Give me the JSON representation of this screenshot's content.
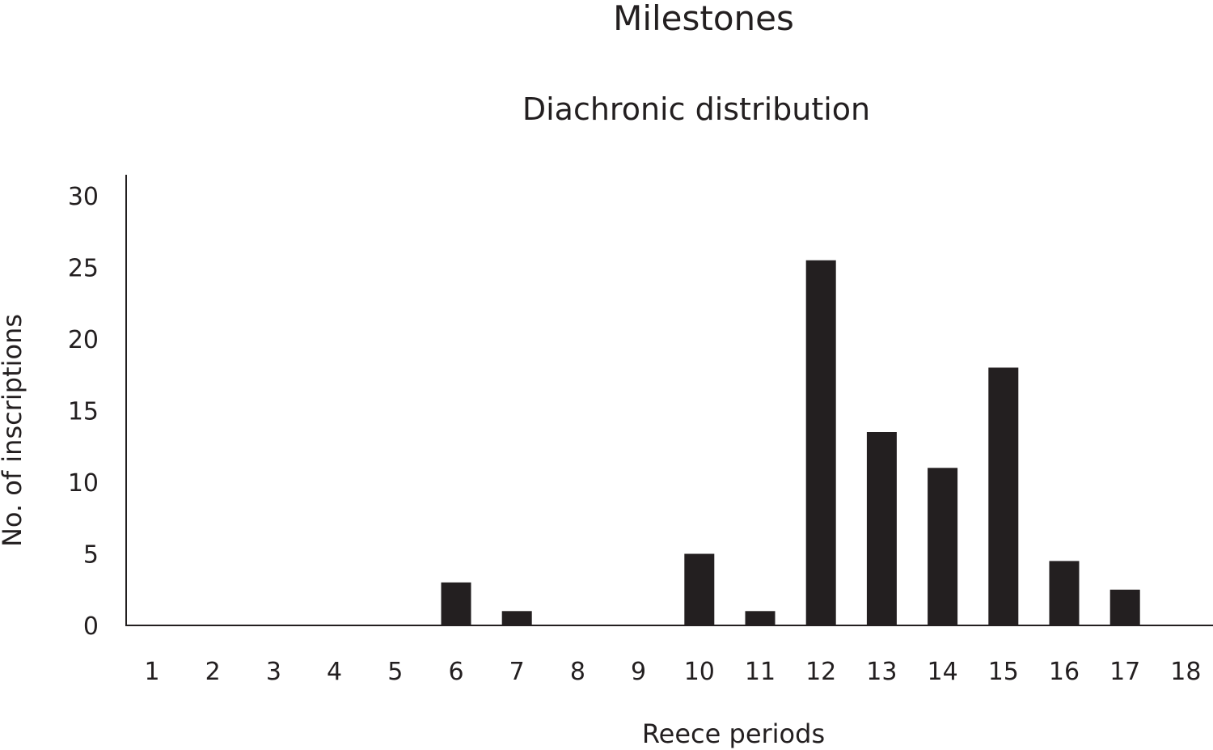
{
  "chart_data": {
    "type": "bar",
    "title": "Milestones",
    "subtitle": "Diachronic distribution",
    "xlabel": "Reece periods",
    "ylabel": "No. of inscriptions",
    "categories": [
      "1",
      "2",
      "3",
      "4",
      "5",
      "6",
      "7",
      "8",
      "9",
      "10",
      "11",
      "12",
      "13",
      "14",
      "15",
      "16",
      "17",
      "18"
    ],
    "values": [
      0,
      0,
      0,
      0,
      0,
      3,
      1,
      0,
      0,
      5,
      1,
      25.5,
      13.5,
      11,
      18,
      4.5,
      2.5,
      0
    ],
    "yticks": [
      "0",
      "5",
      "10",
      "15",
      "20",
      "25",
      "30"
    ],
    "ylim": [
      0,
      30
    ],
    "grid": false,
    "bar_color": "#231f20"
  }
}
